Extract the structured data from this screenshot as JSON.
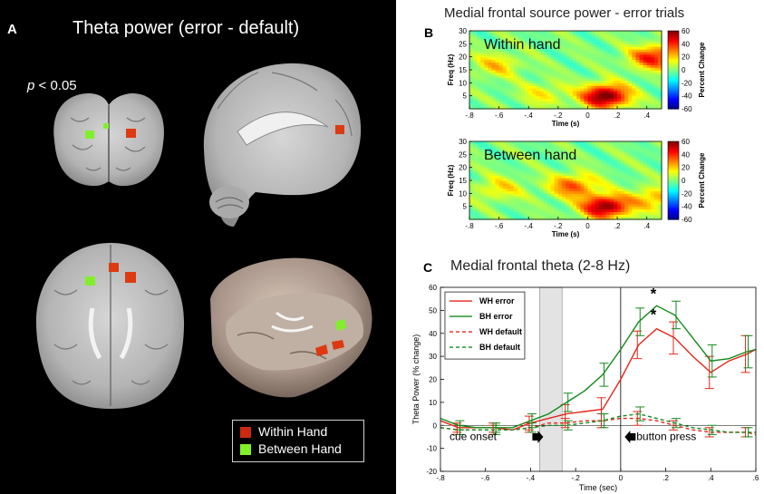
{
  "panel_a": {
    "letter": "A",
    "title": "Theta power (error - default)",
    "p_prefix": "p",
    "p_suffix": " < 0.05",
    "legend": [
      {
        "label": "Within Hand",
        "color": "#cc2a10"
      },
      {
        "label": "Between Hand",
        "color": "#7ff02a"
      }
    ]
  },
  "panel_b": {
    "letter": "B",
    "title": "Medial frontal source power - error trials",
    "colorbar_label": "Percent Change",
    "colorbar_ticks": [
      "60",
      "40",
      "20",
      "0",
      "-20",
      "-40",
      "-60"
    ]
  },
  "panel_c": {
    "letter": "C",
    "title": "Medial frontal theta  (2-8 Hz)",
    "annotations": {
      "cue": "cue onset",
      "button": "button press",
      "star": "*"
    }
  },
  "chart_data": [
    {
      "type": "heatmap",
      "panel": "B-top",
      "title": "Within hand",
      "xlabel": "Time (s)",
      "ylabel": "Freq (Hz)",
      "xlim": [
        -0.8,
        0.5
      ],
      "ylim": [
        0,
        30
      ],
      "xticks": [
        -0.8,
        -0.6,
        -0.4,
        -0.2,
        0,
        0.2,
        0.4
      ],
      "yticks": [
        5,
        10,
        15,
        20,
        25,
        30
      ],
      "clim": [
        -60,
        60
      ],
      "blobs": [
        {
          "t": 0.12,
          "f": 5,
          "peak": 65
        },
        {
          "t": -0.62,
          "f": 17,
          "peak": 20
        },
        {
          "t": -0.3,
          "f": 6,
          "peak": 15
        },
        {
          "t": 0.45,
          "f": 20,
          "peak": 45
        }
      ]
    },
    {
      "type": "heatmap",
      "panel": "B-bottom",
      "title": "Between hand",
      "xlabel": "Time (s)",
      "ylabel": "Freq (Hz)",
      "xlim": [
        -0.8,
        0.5
      ],
      "ylim": [
        0,
        30
      ],
      "xticks": [
        -0.8,
        -0.6,
        -0.4,
        -0.2,
        0,
        0.2,
        0.4
      ],
      "yticks": [
        5,
        10,
        15,
        20,
        25,
        30
      ],
      "clim": [
        -60,
        60
      ],
      "blobs": [
        {
          "t": 0.12,
          "f": 5,
          "peak": 60
        },
        {
          "t": -0.1,
          "f": 13,
          "peak": 35
        },
        {
          "t": -0.6,
          "f": 12,
          "peak": 18
        },
        {
          "t": 0.45,
          "f": 8,
          "peak": 25
        }
      ]
    },
    {
      "type": "line",
      "panel": "C",
      "xlabel": "Time (sec)",
      "ylabel": "Theta Power (% change)",
      "xlim": [
        -0.8,
        0.6
      ],
      "ylim": [
        -20,
        60
      ],
      "xticks": [
        -0.8,
        -0.6,
        -0.4,
        -0.2,
        0,
        0.2,
        0.4,
        0.6
      ],
      "yticks": [
        -20,
        -10,
        0,
        10,
        20,
        30,
        40,
        50,
        60
      ],
      "shaded_interval": [
        -0.36,
        -0.26
      ],
      "vline": 0,
      "series": [
        {
          "name": "WH error",
          "color": "#e3261b",
          "dash": false,
          "x": [
            -0.8,
            -0.72,
            -0.64,
            -0.56,
            -0.48,
            -0.4,
            -0.32,
            -0.24,
            -0.16,
            -0.08,
            0,
            0.08,
            0.16,
            0.24,
            0.32,
            0.4,
            0.48,
            0.56,
            0.6
          ],
          "y": [
            2,
            -1,
            -1,
            -1,
            -2,
            1,
            3,
            5,
            6,
            7,
            20,
            35,
            42,
            38,
            30,
            23,
            28,
            31,
            33
          ],
          "err": [
            2,
            2,
            2,
            2,
            2,
            3,
            3,
            4,
            4,
            5,
            5,
            6,
            7,
            7,
            8,
            7,
            8,
            8,
            8
          ]
        },
        {
          "name": "BH error",
          "color": "#138a1c",
          "dash": false,
          "x": [
            -0.8,
            -0.72,
            -0.64,
            -0.56,
            -0.48,
            -0.4,
            -0.32,
            -0.24,
            -0.16,
            -0.08,
            0,
            0.08,
            0.16,
            0.24,
            0.32,
            0.4,
            0.48,
            0.56,
            0.6
          ],
          "y": [
            3,
            0,
            -1,
            -1,
            -1,
            2,
            5,
            10,
            15,
            22,
            33,
            45,
            52,
            48,
            38,
            28,
            29,
            32,
            33
          ],
          "err": [
            2,
            2,
            2,
            2,
            2,
            3,
            3,
            4,
            4,
            5,
            5,
            6,
            6,
            6,
            7,
            7,
            7,
            7,
            7
          ]
        },
        {
          "name": "WH default",
          "color": "#e3261b",
          "dash": true,
          "x": [
            -0.8,
            -0.72,
            -0.64,
            -0.56,
            -0.48,
            -0.4,
            -0.32,
            -0.24,
            -0.16,
            -0.08,
            0,
            0.08,
            0.16,
            0.24,
            0.32,
            0.4,
            0.48,
            0.56,
            0.6
          ],
          "y": [
            -1,
            -2,
            -2,
            -2,
            -2,
            -1,
            1,
            1,
            2,
            2,
            3,
            3,
            2,
            0,
            -2,
            -3,
            -3,
            -3,
            -4
          ],
          "err": [
            2,
            2,
            2,
            2,
            2,
            2,
            2,
            2,
            2,
            3,
            3,
            3,
            3,
            2,
            2,
            2,
            2,
            2,
            2
          ]
        },
        {
          "name": "BH default",
          "color": "#138a1c",
          "dash": true,
          "x": [
            -0.8,
            -0.72,
            -0.64,
            -0.56,
            -0.48,
            -0.4,
            -0.32,
            -0.24,
            -0.16,
            -0.08,
            0,
            0.08,
            0.16,
            0.24,
            0.32,
            0.4,
            0.48,
            0.56,
            0.6
          ],
          "y": [
            -1,
            -2,
            -2,
            -2,
            -2,
            -1,
            0,
            0,
            1,
            2,
            4,
            5,
            3,
            1,
            -1,
            -2,
            -3,
            -3,
            -3
          ],
          "err": [
            2,
            2,
            2,
            2,
            2,
            2,
            2,
            2,
            2,
            3,
            3,
            3,
            3,
            2,
            2,
            2,
            2,
            2,
            2
          ]
        }
      ]
    }
  ]
}
